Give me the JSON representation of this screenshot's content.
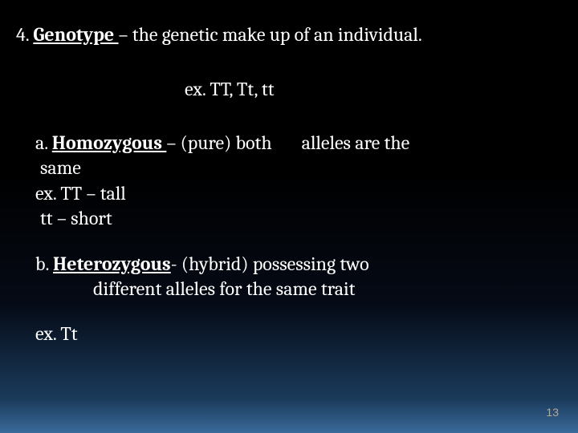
{
  "item4": {
    "num": "4.",
    "term": "Genotype ",
    "def": "– the genetic make up of an   individual."
  },
  "examples_line": "ex. TT,  Tt,  tt",
  "sub_a": {
    "label": "a.",
    "term": "Homozygous ",
    "def_part1": "– (pure)  both",
    "def_part2": "alleles are    the",
    "cont": "same",
    "ex1": "ex.    TT – tall",
    "ex2": "tt – short"
  },
  "sub_b": {
    "label": "b.",
    "term": "Heterozygous",
    "def_part1": "- (hybrid)  possessing two",
    "cont": "different alleles for the same trait"
  },
  "ex_final": "ex.     Tt",
  "page_number": "13",
  "colors": {
    "text": "#ffffff",
    "page_num": "#b8a890",
    "bg_top": "#000000",
    "bg_bottom": "#3a6a9a"
  }
}
